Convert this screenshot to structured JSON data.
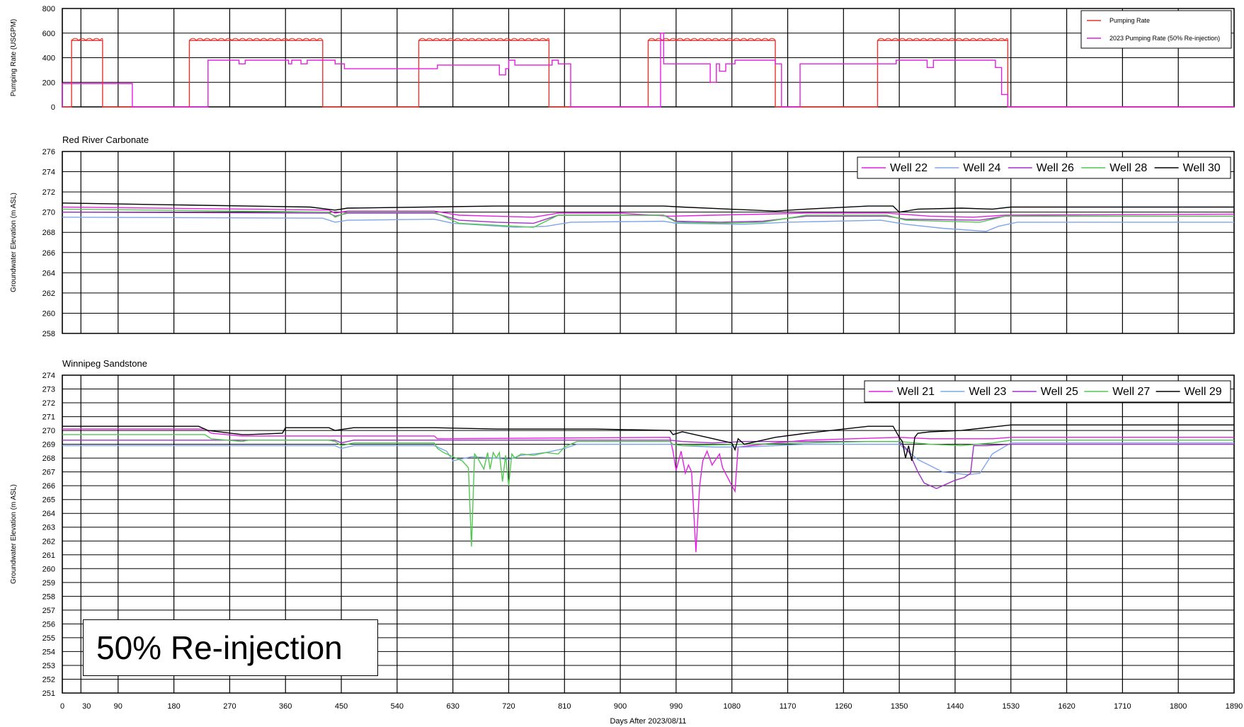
{
  "chart_data": [
    {
      "type": "line",
      "title": "",
      "ylabel": "Pumping Rate (USGPM)",
      "ylim": [
        0,
        800
      ],
      "yticks": [
        0,
        200,
        400,
        600,
        800
      ],
      "xlim": [
        0,
        1890
      ],
      "grid": true,
      "legend_position": "top-right",
      "series": [
        {
          "name": "Pumping Rate",
          "color": "#e8342c",
          "style": "wavy-top",
          "x": [
            0,
            15,
            15,
            65,
            65,
            205,
            205,
            420,
            420,
            575,
            575,
            785,
            785,
            945,
            945,
            1150,
            1150,
            1315,
            1315,
            1525,
            1525,
            1890
          ],
          "y": [
            0,
            0,
            540,
            540,
            0,
            0,
            540,
            540,
            0,
            0,
            540,
            540,
            0,
            0,
            540,
            540,
            0,
            0,
            540,
            540,
            0,
            0
          ]
        },
        {
          "name": "2023 Pumping Rate (50% Re-injection)",
          "color": "#e31fe0",
          "x": [
            0,
            0,
            113,
            113,
            235,
            235,
            285,
            285,
            295,
            295,
            365,
            365,
            370,
            370,
            385,
            385,
            395,
            395,
            440,
            440,
            455,
            455,
            605,
            605,
            705,
            705,
            715,
            715,
            720,
            720,
            730,
            730,
            790,
            790,
            800,
            800,
            820,
            820,
            965,
            965,
            970,
            970,
            1045,
            1045,
            1055,
            1055,
            1060,
            1060,
            1070,
            1070,
            1085,
            1085,
            1150,
            1150,
            1160,
            1160,
            1190,
            1190,
            1345,
            1345,
            1395,
            1395,
            1405,
            1405,
            1505,
            1505,
            1515,
            1515,
            1525,
            1525,
            1890
          ],
          "y": [
            0,
            190,
            190,
            0,
            0,
            380,
            380,
            350,
            350,
            380,
            380,
            350,
            350,
            380,
            380,
            350,
            350,
            380,
            380,
            350,
            350,
            310,
            310,
            340,
            340,
            260,
            260,
            310,
            310,
            380,
            380,
            340,
            340,
            380,
            380,
            350,
            350,
            0,
            0,
            600,
            600,
            350,
            350,
            200,
            200,
            350,
            350,
            290,
            290,
            350,
            350,
            380,
            380,
            350,
            350,
            0,
            0,
            350,
            350,
            380,
            380,
            320,
            320,
            380,
            380,
            320,
            320,
            100,
            100,
            0,
            0
          ]
        }
      ]
    },
    {
      "type": "line",
      "title": "Red River Carbonate",
      "ylabel": "Groundwater Elevation (m ASL)",
      "ylim": [
        258,
        276
      ],
      "yticks": [
        258,
        260,
        262,
        264,
        266,
        268,
        270,
        272,
        274,
        276
      ],
      "xlim": [
        0,
        1890
      ],
      "grid": true,
      "legend_position": "top-right",
      "series": [
        {
          "name": "Well 22",
          "color": "#e31fe0",
          "x": [
            0,
            430,
            440,
            460,
            600,
            640,
            700,
            760,
            800,
            900,
            980,
            1050,
            1130,
            1200,
            1330,
            1400,
            1470,
            1520,
            1890
          ],
          "y": [
            270.5,
            270.2,
            269.9,
            270.1,
            270.1,
            269.7,
            269.6,
            269.5,
            269.9,
            269.9,
            269.6,
            269.7,
            269.8,
            269.9,
            269.9,
            269.6,
            269.5,
            269.7,
            269.8
          ]
        },
        {
          "name": "Well 24",
          "color": "#7ea5e8",
          "x": [
            0,
            420,
            440,
            460,
            600,
            630,
            680,
            730,
            780,
            820,
            970,
            990,
            1100,
            1170,
            1320,
            1360,
            1420,
            1490,
            1510,
            1540,
            1890
          ],
          "y": [
            269.5,
            269.4,
            269.0,
            269.2,
            269.3,
            268.9,
            268.7,
            268.5,
            268.6,
            269.0,
            269.1,
            268.9,
            268.8,
            269.0,
            269.2,
            268.8,
            268.4,
            268.1,
            268.6,
            269.0,
            269.0
          ]
        },
        {
          "name": "Well 26",
          "color": "#a030c8",
          "x": [
            0,
            430,
            440,
            460,
            600,
            640,
            700,
            760,
            800,
            970,
            990,
            1060,
            1130,
            1200,
            1330,
            1360,
            1480,
            1520,
            1890
          ],
          "y": [
            270.0,
            269.9,
            269.6,
            269.9,
            269.9,
            269.2,
            269.0,
            268.9,
            269.7,
            269.7,
            269.1,
            269.0,
            269.1,
            269.6,
            269.6,
            269.3,
            269.2,
            269.6,
            269.6
          ]
        },
        {
          "name": "Well 28",
          "color": "#50c850",
          "x": [
            0,
            430,
            440,
            460,
            600,
            640,
            700,
            760,
            800,
            970,
            990,
            1060,
            1130,
            1200,
            1330,
            1360,
            1480,
            1520,
            1890
          ],
          "y": [
            270.3,
            270.0,
            269.5,
            270.0,
            270.0,
            268.9,
            268.7,
            268.5,
            269.7,
            269.7,
            269.0,
            268.9,
            269.0,
            269.7,
            269.7,
            269.2,
            269.0,
            269.6,
            269.6
          ]
        },
        {
          "name": "Well 30",
          "color": "#000000",
          "x": [
            0,
            400,
            440,
            460,
            700,
            800,
            970,
            1000,
            1150,
            1200,
            1300,
            1340,
            1350,
            1380,
            1450,
            1500,
            1530,
            1890
          ],
          "y": [
            270.9,
            270.5,
            270.2,
            270.4,
            270.6,
            270.6,
            270.6,
            270.5,
            270.1,
            270.3,
            270.6,
            270.6,
            270.0,
            270.3,
            270.4,
            270.3,
            270.5,
            270.5
          ]
        }
      ]
    },
    {
      "type": "line",
      "title": "Winnipeg Sandstone",
      "ylabel": "Groundwater Elevation (m ASL)",
      "xlabel": "Days After 2023/08/11",
      "ylim": [
        251,
        274
      ],
      "yticks": [
        251,
        252,
        253,
        254,
        255,
        256,
        257,
        258,
        259,
        260,
        261,
        262,
        263,
        264,
        265,
        266,
        267,
        268,
        269,
        270,
        271,
        272,
        273,
        274
      ],
      "xlim": [
        0,
        1890
      ],
      "xticks": [
        0,
        30,
        90,
        180,
        270,
        360,
        450,
        540,
        630,
        720,
        810,
        900,
        990,
        1080,
        1170,
        1260,
        1350,
        1440,
        1530,
        1620,
        1710,
        1800,
        1890
      ],
      "grid": true,
      "legend_position": "top-right",
      "series": [
        {
          "name": "Well 21",
          "color": "#e31fe0",
          "x": [
            0,
            230,
            240,
            290,
            300,
            600,
            605,
            980,
            985,
            990,
            998,
            1005,
            1010,
            1015,
            1022,
            1028,
            1033,
            1040,
            1048,
            1060,
            1065,
            1080,
            1085,
            1090,
            1150,
            1200,
            1350,
            1400,
            1500,
            1530,
            1890
          ],
          "y": [
            270.1,
            270.1,
            269.8,
            269.6,
            269.6,
            269.6,
            269.4,
            269.5,
            268.5,
            267.1,
            268.5,
            266.9,
            267.5,
            267.0,
            261.2,
            266.0,
            267.8,
            268.5,
            267.5,
            268.3,
            267.3,
            266.0,
            265.6,
            268.8,
            269.1,
            269.3,
            269.5,
            269.4,
            269.4,
            269.5,
            269.5
          ]
        },
        {
          "name": "Well 23",
          "color": "#7ea5e8",
          "x": [
            0,
            440,
            450,
            470,
            600,
            620,
            630,
            660,
            700,
            720,
            740,
            780,
            810,
            830,
            980,
            1000,
            1050,
            1100,
            1150,
            1200,
            1350,
            1380,
            1420,
            1460,
            1480,
            1500,
            1530,
            1890
          ],
          "y": [
            268.9,
            268.9,
            268.7,
            268.9,
            268.9,
            268.5,
            267.8,
            268.1,
            268.0,
            267.9,
            268.2,
            268.4,
            268.7,
            269.0,
            269.0,
            268.9,
            268.8,
            268.8,
            268.9,
            269.0,
            269.0,
            267.9,
            267.0,
            266.8,
            266.9,
            268.3,
            269.1,
            269.1
          ]
        },
        {
          "name": "Well 25",
          "color": "#a030c8",
          "x": [
            0,
            440,
            450,
            470,
            980,
            1000,
            1050,
            1100,
            1350,
            1365,
            1380,
            1390,
            1400,
            1410,
            1425,
            1440,
            1455,
            1465,
            1470,
            1490,
            1530,
            1890
          ],
          "y": [
            269.3,
            269.3,
            269.1,
            269.3,
            269.3,
            269.2,
            269.1,
            269.2,
            269.2,
            268.5,
            267.0,
            266.2,
            266.0,
            265.8,
            266.1,
            266.4,
            266.6,
            266.9,
            268.9,
            268.9,
            269.0,
            269.0
          ]
        },
        {
          "name": "Well 27",
          "color": "#50c850",
          "x": [
            0,
            230,
            240,
            290,
            300,
            430,
            440,
            450,
            470,
            600,
            605,
            615,
            625,
            635,
            645,
            655,
            660,
            665,
            670,
            680,
            686,
            690,
            695,
            700,
            705,
            710,
            715,
            720,
            725,
            730,
            740,
            760,
            780,
            800,
            810,
            830,
            980,
            985,
            1000,
            1100,
            1300,
            1350,
            1400,
            1450,
            1500,
            1530,
            1890
          ],
          "y": [
            269.7,
            269.7,
            269.4,
            269.2,
            269.3,
            269.3,
            269.2,
            268.9,
            269.1,
            269.1,
            268.7,
            268.4,
            268.2,
            268.0,
            267.8,
            267.3,
            261.6,
            268.3,
            268.0,
            267.2,
            268.4,
            267.2,
            268.4,
            268.0,
            268.4,
            266.3,
            268.2,
            266.0,
            268.3,
            268.0,
            268.3,
            268.2,
            268.4,
            268.3,
            268.8,
            269.2,
            269.2,
            269.0,
            268.9,
            269.0,
            269.2,
            269.2,
            269.0,
            268.9,
            269.1,
            269.3,
            269.3
          ]
        },
        {
          "name": "Well 29",
          "color": "#000000",
          "x": [
            0,
            220,
            235,
            290,
            300,
            355,
            360,
            430,
            440,
            470,
            600,
            700,
            860,
            980,
            985,
            1000,
            1040,
            1060,
            1080,
            1085,
            1090,
            1100,
            1150,
            1200,
            1300,
            1340,
            1350,
            1355,
            1360,
            1365,
            1370,
            1375,
            1380,
            1400,
            1450,
            1530,
            1890
          ],
          "y": [
            270.3,
            270.3,
            270.0,
            269.7,
            269.7,
            269.8,
            270.2,
            270.2,
            270.0,
            270.2,
            270.2,
            270.1,
            270.1,
            270.0,
            269.7,
            269.9,
            269.5,
            269.3,
            269.1,
            268.6,
            269.4,
            269.0,
            269.5,
            269.8,
            270.3,
            270.3,
            269.5,
            269.2,
            268.0,
            268.9,
            267.8,
            269.5,
            269.8,
            269.9,
            270.0,
            270.4,
            270.4
          ]
        }
      ]
    }
  ],
  "annotation": "50% Re-injection"
}
